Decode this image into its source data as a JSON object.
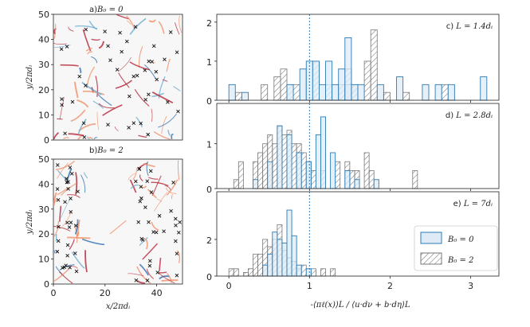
{
  "left_panels": [
    {
      "label": "a) B_0 = 0",
      "label_text": "a)",
      "label_math": "B₀ = 0",
      "yticks": [
        "0",
        "10",
        "20",
        "30",
        "40",
        "50"
      ],
      "ylabel": "y/2πdᵢ",
      "xticks": []
    },
    {
      "label": "b) B_0 = 2",
      "label_text": "b)",
      "label_math": "B₀ = 2",
      "yticks": [
        "0",
        "10",
        "20",
        "30",
        "40",
        "50"
      ],
      "ylabel": "y/2πdᵢ",
      "xticks": [
        "0",
        "20",
        "40"
      ],
      "xlabel": "x/2πdᵢ"
    }
  ],
  "chart_data": [
    {
      "type": "bar",
      "panel": "c",
      "annotation": "c) L = 1.4dᵢ",
      "annotation_prefix": "c)",
      "annotation_math": "L = 1.4dᵢ",
      "ylim": [
        0,
        2.2
      ],
      "yticks": [
        "0",
        "1",
        "2"
      ],
      "xlim": [
        -0.15,
        3.35
      ],
      "bin_width": 0.08,
      "series": [
        {
          "name": "B₀ = 0",
          "bins": [
            [
              0,
              0.4
            ],
            [
              0.16,
              0.2
            ],
            [
              0.72,
              0.4
            ],
            [
              0.88,
              0.8
            ],
            [
              0.96,
              1
            ],
            [
              1.04,
              1
            ],
            [
              1.12,
              0.4
            ],
            [
              1.2,
              1
            ],
            [
              1.28,
              0.4
            ],
            [
              1.36,
              0.8
            ],
            [
              1.44,
              0.4
            ],
            [
              1.52,
              0.4
            ],
            [
              1.6,
              0.4
            ],
            [
              2.08,
              0.6
            ],
            [
              2.4,
              0.4
            ],
            [
              2.56,
              0.4
            ],
            [
              2.72,
              0.4
            ],
            [
              3.12,
              0.6
            ],
            [
              1.44,
              1.6
            ],
            [
              1.84,
              0.4
            ]
          ]
        },
        {
          "name": "B₀ = 2",
          "bins": [
            [
              0.08,
              0.2
            ],
            [
              0.4,
              0.4
            ],
            [
              0.56,
              0.6
            ],
            [
              0.64,
              0.8
            ],
            [
              0.72,
              0.4
            ],
            [
              0.8,
              0.4
            ],
            [
              1.04,
              1
            ],
            [
              1.2,
              0.4
            ],
            [
              1.36,
              0.4
            ],
            [
              1.44,
              0.8
            ],
            [
              1.52,
              0.4
            ],
            [
              1.68,
              1
            ],
            [
              1.76,
              1.8
            ],
            [
              1.92,
              0.2
            ],
            [
              2.16,
              0.2
            ],
            [
              2.64,
              0.4
            ]
          ]
        }
      ],
      "vline_x": 1.0
    },
    {
      "type": "bar",
      "panel": "d",
      "annotation": "d) L = 2.8dᵢ",
      "annotation_prefix": "d)",
      "annotation_math": "L = 2.8dᵢ",
      "ylim": [
        0,
        1.9
      ],
      "yticks": [
        "0",
        "1"
      ],
      "xlim": [
        -0.15,
        3.35
      ],
      "bin_width": 0.06,
      "series": [
        {
          "name": "B₀ = 0",
          "bins": [
            [
              0.3,
              0.2
            ],
            [
              0.48,
              0.6
            ],
            [
              0.6,
              1.4
            ],
            [
              0.72,
              1.2
            ],
            [
              0.84,
              0.8
            ],
            [
              0.96,
              0.6
            ],
            [
              1.08,
              1.2
            ],
            [
              1.14,
              1.6
            ],
            [
              1.26,
              0.8
            ],
            [
              1.44,
              0.4
            ],
            [
              1.56,
              0.2
            ],
            [
              1.8,
              0.2
            ]
          ]
        },
        {
          "name": "B₀ = 2",
          "bins": [
            [
              0.06,
              0.2
            ],
            [
              0.12,
              0.6
            ],
            [
              0.3,
              0.6
            ],
            [
              0.36,
              0.8
            ],
            [
              0.42,
              1.0
            ],
            [
              0.48,
              1.2
            ],
            [
              0.54,
              1.0
            ],
            [
              0.6,
              1.4
            ],
            [
              0.66,
              1.2
            ],
            [
              0.72,
              1.3
            ],
            [
              0.78,
              1.0
            ],
            [
              0.84,
              1.0
            ],
            [
              0.9,
              0.8
            ],
            [
              0.96,
              0.6
            ],
            [
              1.02,
              0.4
            ],
            [
              1.14,
              0.4
            ],
            [
              1.32,
              0.6
            ],
            [
              1.44,
              0.6
            ],
            [
              1.5,
              0.4
            ],
            [
              1.56,
              0.4
            ],
            [
              1.68,
              0.8
            ],
            [
              1.74,
              0.4
            ],
            [
              2.28,
              0.4
            ]
          ]
        }
      ],
      "vline_x": 1.0
    },
    {
      "type": "bar",
      "panel": "e",
      "annotation": "e) L = 7dᵢ",
      "annotation_prefix": "e)",
      "annotation_math": "L = 7dᵢ",
      "ylim": [
        0,
        4.6
      ],
      "yticks": [
        "0",
        "2"
      ],
      "xlim": [
        -0.15,
        3.35
      ],
      "bin_width": 0.06,
      "series": [
        {
          "name": "B₀ = 0",
          "bins": [
            [
              0.42,
              0.6
            ],
            [
              0.48,
              1.2
            ],
            [
              0.54,
              2.4
            ],
            [
              0.6,
              2.0
            ],
            [
              0.66,
              1.8
            ],
            [
              0.72,
              3.6
            ],
            [
              0.78,
              2.2
            ],
            [
              0.84,
              0.6
            ],
            [
              0.96,
              0.4
            ]
          ]
        },
        {
          "name": "B₀ = 2",
          "bins": [
            [
              0,
              0.4
            ],
            [
              0.06,
              0.4
            ],
            [
              0.18,
              0.2
            ],
            [
              0.24,
              0.4
            ],
            [
              0.3,
              1.2
            ],
            [
              0.36,
              1.2
            ],
            [
              0.42,
              2.0
            ],
            [
              0.48,
              1.6
            ],
            [
              0.54,
              2.0
            ],
            [
              0.6,
              2.8
            ],
            [
              0.66,
              1.4
            ],
            [
              0.72,
              1.0
            ],
            [
              0.78,
              0.8
            ],
            [
              0.84,
              0.4
            ],
            [
              0.9,
              0.6
            ],
            [
              1.02,
              0.4
            ],
            [
              1.14,
              0.4
            ],
            [
              1.26,
              0.4
            ]
          ]
        }
      ],
      "vline_x": 1.0
    }
  ],
  "xaxis": {
    "ticks": [
      "0",
      "1",
      "2",
      "3"
    ],
    "label": "-⟨πℓ(x)⟩L / ⟨u·dν + b·dη⟩L"
  },
  "legend": {
    "entries": [
      "B₀ = 0",
      "B₀ = 2"
    ]
  },
  "colors": {
    "b0": "#2c7bb6",
    "b0_fill": "#deebf7",
    "b2": "#777777"
  }
}
